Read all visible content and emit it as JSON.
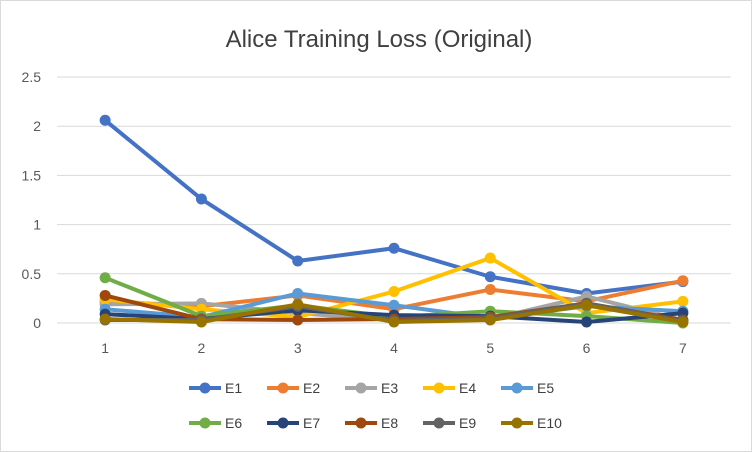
{
  "chart_data": {
    "type": "line",
    "title": "Alice Training Loss (Original)",
    "xlabel": "",
    "ylabel": "",
    "categories": [
      "1",
      "2",
      "3",
      "4",
      "5",
      "6",
      "7"
    ],
    "ylim": [
      0,
      2.5
    ],
    "yticks": [
      "0",
      "0.5",
      "1",
      "1.5",
      "2",
      "2.5"
    ],
    "grid": true,
    "legend_position": "bottom",
    "series": [
      {
        "name": "E1",
        "color": "#4472C4",
        "values": [
          2.06,
          1.26,
          0.63,
          0.76,
          0.47,
          0.3,
          0.42
        ]
      },
      {
        "name": "E2",
        "color": "#ED7D31",
        "values": [
          0.22,
          0.17,
          0.28,
          0.14,
          0.34,
          0.22,
          0.43
        ]
      },
      {
        "name": "E3",
        "color": "#A5A5A5",
        "values": [
          0.19,
          0.2,
          0.1,
          0.03,
          0.04,
          0.27,
          0.03
        ]
      },
      {
        "name": "E4",
        "color": "#FFC000",
        "values": [
          0.24,
          0.14,
          0.06,
          0.32,
          0.66,
          0.1,
          0.22
        ]
      },
      {
        "name": "E5",
        "color": "#5B9BD5",
        "values": [
          0.14,
          0.06,
          0.3,
          0.18,
          0.05,
          0.17,
          0.12
        ]
      },
      {
        "name": "E6",
        "color": "#70AD47",
        "values": [
          0.46,
          0.07,
          0.18,
          0.06,
          0.12,
          0.07,
          0.0
        ]
      },
      {
        "name": "E7",
        "color": "#264478",
        "values": [
          0.09,
          0.04,
          0.13,
          0.08,
          0.07,
          0.01,
          0.1
        ]
      },
      {
        "name": "E8",
        "color": "#9E480E",
        "values": [
          0.28,
          0.04,
          0.03,
          0.04,
          0.06,
          0.2,
          0.03
        ]
      },
      {
        "name": "E9",
        "color": "#636363",
        "values": [
          0.03,
          0.03,
          0.17,
          0.02,
          0.05,
          0.2,
          0.02
        ]
      },
      {
        "name": "E10",
        "color": "#997300",
        "values": [
          0.04,
          0.01,
          0.19,
          0.01,
          0.03,
          0.18,
          0.01
        ]
      }
    ]
  }
}
